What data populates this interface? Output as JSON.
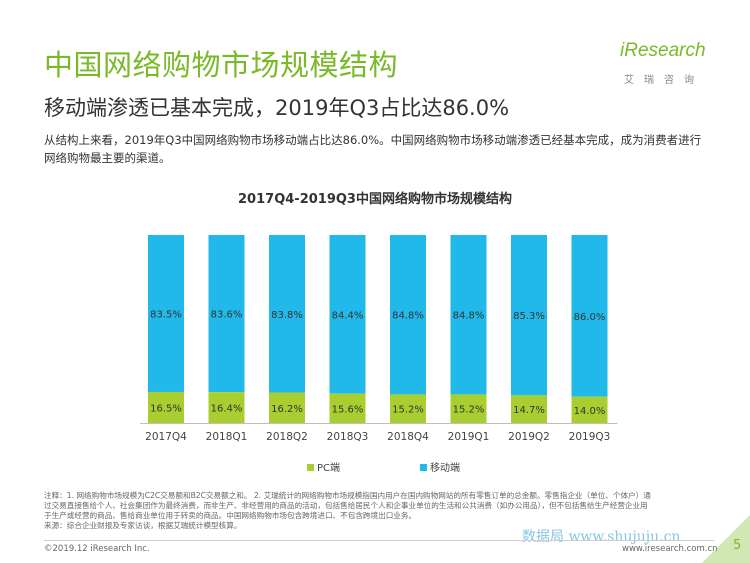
{
  "header": {
    "title": "中国网络购物市场规模结构",
    "subtitle": "移动端渗透已基本完成，2019年Q3占比达86.0%",
    "description": "从结构上来看，2019年Q3中国网络购物市场移动端占比达86.0%。中国网络购物市场移动端渗透已经基本完成，成为消费者进行网络购物最主要的渠道。"
  },
  "logo": {
    "text": "iResearch",
    "sub": "艾瑞咨询"
  },
  "chart_data": {
    "type": "bar",
    "stacked": true,
    "percent": true,
    "title": "2017Q4-2019Q3中国网络购物市场规模结构",
    "categories": [
      "2017Q4",
      "2018Q1",
      "2018Q2",
      "2018Q3",
      "2018Q4",
      "2019Q1",
      "2019Q2",
      "2019Q3"
    ],
    "series": [
      {
        "name": "PC端",
        "color": "#a8cf2f",
        "values": [
          16.5,
          16.4,
          16.2,
          15.6,
          15.2,
          15.2,
          14.7,
          14.0
        ],
        "labels": [
          "16.5%",
          "16.4%",
          "16.2%",
          "15.6%",
          "15.2%",
          "15.2%",
          "14.7%",
          "14.0%"
        ]
      },
      {
        "name": "移动端",
        "color": "#21b9ea",
        "values": [
          83.5,
          83.6,
          83.8,
          84.4,
          84.8,
          84.8,
          85.3,
          86.0
        ],
        "labels": [
          "83.5%",
          "83.6%",
          "83.8%",
          "84.4%",
          "84.8%",
          "84.8%",
          "85.3%",
          "86.0%"
        ]
      }
    ],
    "ylim": [
      0,
      100
    ],
    "legend": "bottom-center"
  },
  "notes": [
    "注释：1. 网络购物市场规模为C2C交易额和B2C交易额之和。 2. 艾瑞统计的网络购物市场规模指国内用户在国内购物网站的所有零售订单的总金额。零售指企业（单位、个体户）通",
    "过交易直接售给个人、社会集团作为最终消费，而非生产、非经营用的商品的活动，包括售给居民个人和企事业单位的生活和公共消费（如办公用品），但不包括售给生产经营企业用",
    "于生产或经营的商品、售给商业单位用于转卖的商品。中国网络购物市场包含跨境进口、不包含跨境出口业务。",
    "来源：综合企业财报及专家访谈，根据艾瑞统计模型核算。"
  ],
  "footer": {
    "copyright": "©2019.12 iResearch Inc.",
    "url": "www.iresearch.com.cn",
    "page": "5",
    "watermark": "数据局 www.shujuju.cn"
  }
}
